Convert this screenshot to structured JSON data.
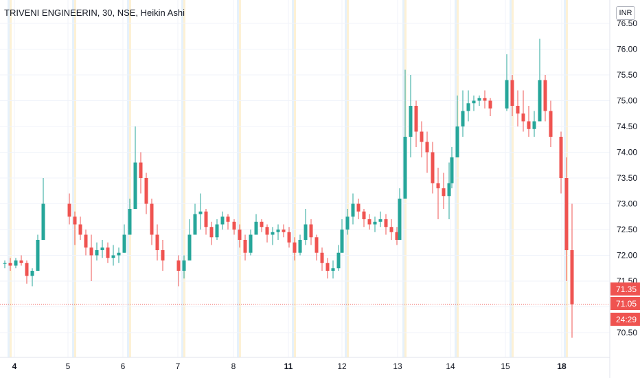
{
  "title": "TRIVENI ENGINEERIN, 30, NSE, Heikin Ashi",
  "currency": "INR",
  "colors": {
    "up": "#26a69a",
    "down": "#ef5350",
    "grid": "#f0f3fa",
    "axis_text": "#131722",
    "session_band": "#fdeecb",
    "session_band_alt": "#dcebf9"
  },
  "chart_data": {
    "type": "candlestick",
    "style": "Heikin Ashi",
    "symbol": "TRIVENI ENGINEERIN",
    "exchange": "NSE",
    "interval": "30",
    "ylim": [
      70.3,
      76.6
    ],
    "y_ticks": [
      70.5,
      71.0,
      71.5,
      72.0,
      72.5,
      73.0,
      73.5,
      74.0,
      74.5,
      75.0,
      75.5,
      76.0,
      76.5
    ],
    "y_tick_labels": [
      "70.50",
      "71.00",
      "71.50",
      "72.00",
      "72.50",
      "73.00",
      "73.50",
      "74.00",
      "74.50",
      "75.00",
      "75.50",
      "76.00",
      "76.50"
    ],
    "x_labels": [
      "4",
      "5",
      "6",
      "7",
      "8",
      "11",
      "12",
      "13",
      "14",
      "15",
      "18"
    ],
    "x_label_bold": [
      "4",
      "11",
      "18"
    ],
    "sessions": [
      {
        "label": "4",
        "candles": [
          [
            71.85,
            71.9,
            71.75,
            71.85
          ],
          [
            71.85,
            71.95,
            71.7,
            71.8
          ],
          [
            71.8,
            71.95,
            71.75,
            71.9
          ],
          [
            71.9,
            72.0,
            71.8,
            71.85
          ],
          [
            71.85,
            71.9,
            71.45,
            71.6
          ],
          [
            71.6,
            71.75,
            71.4,
            71.7
          ],
          [
            71.7,
            72.4,
            71.7,
            72.3
          ],
          [
            72.3,
            73.5,
            72.3,
            73.0
          ]
        ]
      },
      {
        "label": "5",
        "candles": [
          [
            73.0,
            73.2,
            72.6,
            72.75
          ],
          [
            72.75,
            72.85,
            72.2,
            72.6
          ],
          [
            72.6,
            72.75,
            72.3,
            72.4
          ],
          [
            72.4,
            72.5,
            72.0,
            72.15
          ],
          [
            72.15,
            72.4,
            71.5,
            72.0
          ],
          [
            72.0,
            72.25,
            71.9,
            72.1
          ],
          [
            72.1,
            72.3,
            71.95,
            72.15
          ],
          [
            72.15,
            72.25,
            71.85,
            71.95
          ],
          [
            71.95,
            72.2,
            71.8,
            72.0
          ],
          [
            72.0,
            72.15,
            71.85,
            72.05
          ]
        ]
      },
      {
        "label": "6",
        "candles": [
          [
            72.05,
            72.6,
            72.05,
            72.4
          ],
          [
            72.4,
            73.1,
            72.4,
            72.9
          ],
          [
            72.9,
            74.5,
            72.9,
            73.8
          ],
          [
            73.8,
            74.0,
            73.2,
            73.5
          ],
          [
            73.5,
            73.6,
            72.8,
            73.0
          ],
          [
            73.0,
            73.1,
            72.2,
            72.4
          ],
          [
            72.4,
            72.6,
            71.9,
            72.1
          ],
          [
            72.1,
            72.3,
            71.7,
            71.9
          ]
        ]
      },
      {
        "label": "7",
        "candles": [
          [
            71.9,
            72.0,
            71.4,
            71.7
          ],
          [
            71.7,
            72.0,
            71.55,
            71.9
          ],
          [
            71.9,
            72.7,
            71.9,
            72.4
          ],
          [
            72.4,
            73.0,
            72.4,
            72.8
          ],
          [
            72.8,
            73.2,
            72.5,
            72.85
          ],
          [
            72.85,
            72.9,
            72.4,
            72.55
          ],
          [
            72.55,
            72.65,
            72.2,
            72.35
          ],
          [
            72.35,
            72.7,
            72.3,
            72.6
          ],
          [
            72.6,
            72.85,
            72.5,
            72.75
          ],
          [
            72.75,
            72.8,
            72.5,
            72.65
          ]
        ]
      },
      {
        "label": "8",
        "candles": [
          [
            72.65,
            72.7,
            72.4,
            72.5
          ],
          [
            72.5,
            72.6,
            72.15,
            72.3
          ],
          [
            72.3,
            72.4,
            71.9,
            72.05
          ],
          [
            72.05,
            72.5,
            72.0,
            72.4
          ],
          [
            72.4,
            72.8,
            72.4,
            72.65
          ],
          [
            72.65,
            72.7,
            72.45,
            72.55
          ],
          [
            72.55,
            72.6,
            72.25,
            72.4
          ],
          [
            72.4,
            72.55,
            72.2,
            72.45
          ],
          [
            72.45,
            72.6,
            72.3,
            72.5
          ],
          [
            72.5,
            72.6,
            72.35,
            72.45
          ]
        ]
      },
      {
        "label": "11",
        "candles": [
          [
            72.45,
            72.55,
            72.15,
            72.25
          ],
          [
            72.25,
            72.35,
            71.9,
            72.05
          ],
          [
            72.05,
            72.4,
            72.0,
            72.3
          ],
          [
            72.3,
            72.9,
            72.2,
            72.6
          ],
          [
            72.6,
            72.7,
            72.2,
            72.35
          ],
          [
            72.35,
            72.4,
            71.9,
            72.05
          ],
          [
            72.05,
            72.15,
            71.7,
            71.85
          ],
          [
            71.85,
            71.95,
            71.55,
            71.7
          ],
          [
            71.7,
            71.9,
            71.55,
            71.75
          ],
          [
            71.75,
            72.2,
            71.7,
            72.05
          ]
        ]
      },
      {
        "label": "12",
        "candles": [
          [
            72.05,
            72.7,
            72.05,
            72.5
          ],
          [
            72.5,
            72.9,
            72.4,
            72.75
          ],
          [
            72.75,
            73.2,
            72.6,
            73.0
          ],
          [
            73.0,
            73.1,
            72.7,
            72.85
          ],
          [
            72.85,
            72.9,
            72.55,
            72.7
          ],
          [
            72.7,
            72.8,
            72.5,
            72.6
          ],
          [
            72.6,
            72.75,
            72.45,
            72.65
          ],
          [
            72.65,
            72.85,
            72.55,
            72.7
          ],
          [
            72.7,
            72.8,
            72.4,
            72.55
          ],
          [
            72.55,
            72.7,
            72.3,
            72.45
          ],
          [
            72.45,
            72.55,
            72.2,
            72.3
          ]
        ]
      },
      {
        "label": "13",
        "candles": [
          [
            72.3,
            73.3,
            72.3,
            73.1
          ],
          [
            73.1,
            75.6,
            73.1,
            74.3
          ],
          [
            74.3,
            75.5,
            73.9,
            74.9
          ],
          [
            74.9,
            75.0,
            74.1,
            74.4
          ],
          [
            74.4,
            74.6,
            73.9,
            74.2
          ],
          [
            74.2,
            74.4,
            73.6,
            74.0
          ],
          [
            74.0,
            74.2,
            73.2,
            73.4
          ],
          [
            73.4,
            73.7,
            72.7,
            73.3
          ],
          [
            73.3,
            73.6,
            72.9,
            73.15
          ],
          [
            73.15,
            73.8,
            72.7,
            73.4
          ]
        ]
      },
      {
        "label": "14",
        "candles": [
          [
            73.4,
            74.1,
            73.3,
            73.9
          ],
          [
            73.9,
            75.1,
            73.9,
            74.5
          ],
          [
            74.5,
            75.2,
            74.3,
            74.8
          ],
          [
            74.8,
            75.2,
            74.6,
            74.95
          ],
          [
            74.95,
            75.1,
            74.8,
            75.0
          ],
          [
            75.0,
            75.1,
            74.9,
            75.05
          ],
          [
            75.05,
            75.2,
            74.85,
            75.0
          ],
          [
            75.0,
            75.05,
            74.7,
            74.85
          ]
        ]
      },
      {
        "label": "15",
        "candles": [
          [
            74.85,
            75.9,
            74.8,
            75.4
          ],
          [
            75.4,
            75.5,
            74.7,
            74.9
          ],
          [
            74.9,
            75.2,
            74.5,
            74.75
          ],
          [
            74.75,
            75.2,
            74.4,
            74.6
          ],
          [
            74.6,
            74.9,
            74.3,
            74.45
          ],
          [
            74.45,
            74.8,
            74.3,
            74.6
          ],
          [
            74.6,
            76.2,
            74.6,
            75.4
          ],
          [
            75.4,
            75.5,
            74.6,
            74.8
          ],
          [
            74.8,
            75.0,
            74.1,
            74.3
          ]
        ]
      },
      {
        "label": "18",
        "candles": [
          [
            74.3,
            74.4,
            73.2,
            73.5
          ],
          [
            73.5,
            73.9,
            71.5,
            72.1
          ],
          [
            72.1,
            73.0,
            70.4,
            71.05
          ]
        ]
      }
    ],
    "last_price_line": 71.05,
    "price_badges": [
      {
        "text": "71.35",
        "price": 71.35
      },
      {
        "text": "71.05",
        "price": 71.05
      },
      {
        "text": "24:29",
        "price": 71.05
      }
    ]
  }
}
